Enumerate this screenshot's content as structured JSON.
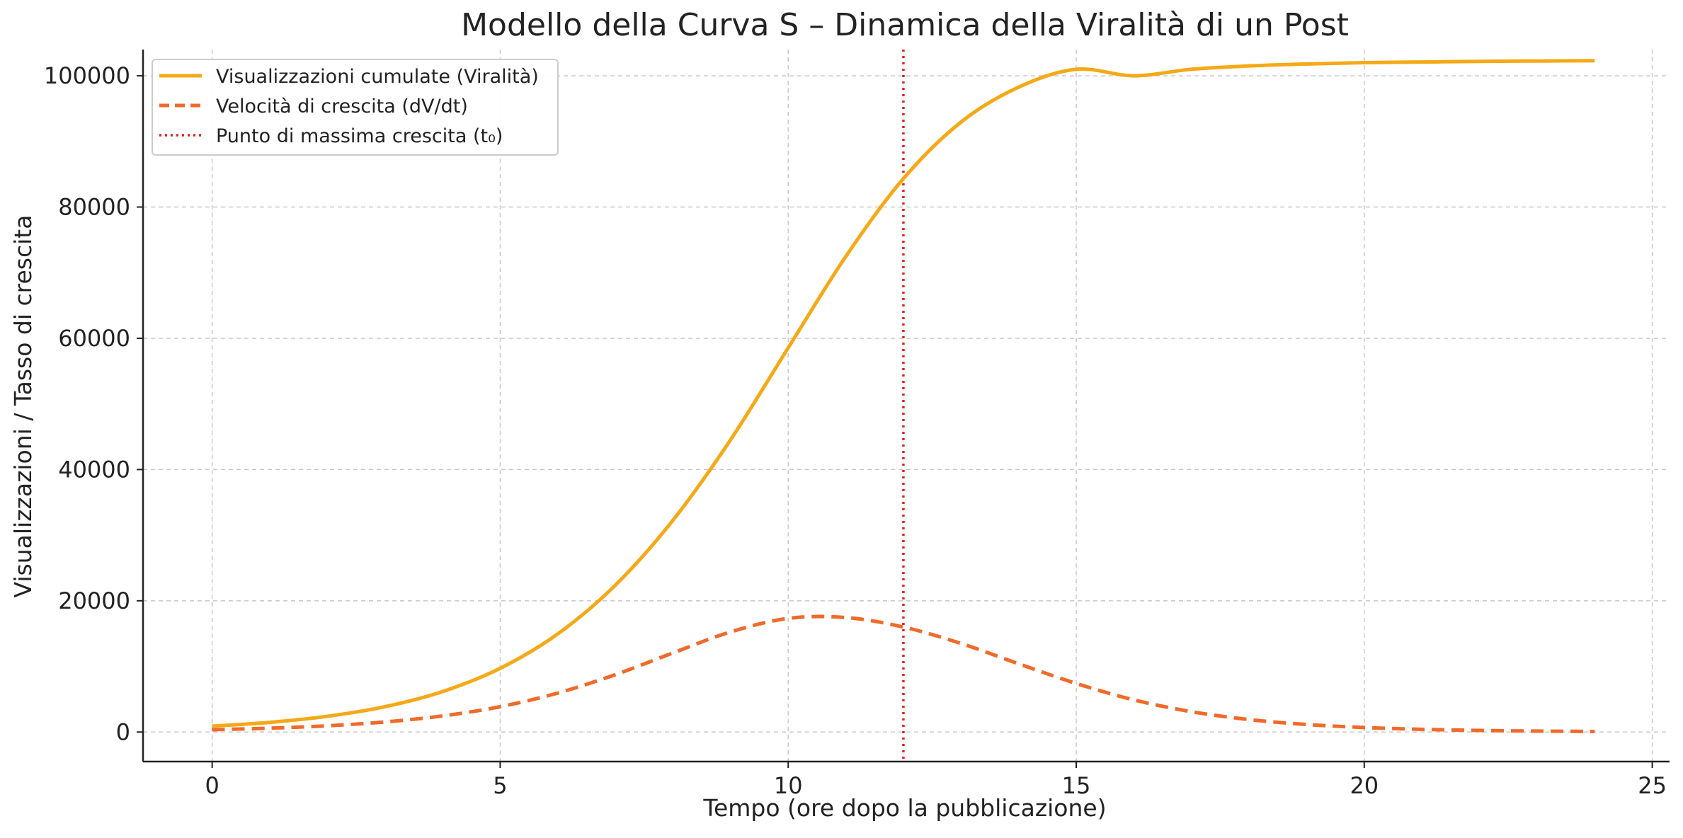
{
  "chart_data": {
    "type": "line",
    "title": "Modello della Curva S – Dinamica della Viralità di un Post",
    "xlabel": "Tempo (ore dopo la pubblicazione)",
    "ylabel": "Visualizzazioni / Tasso di crescita",
    "xlim": [
      -1.2,
      25.3
    ],
    "ylim": [
      -4500,
      104000
    ],
    "x_ticks": [
      0,
      5,
      10,
      15,
      20,
      25
    ],
    "y_ticks": [
      0,
      20000,
      40000,
      60000,
      80000,
      100000
    ],
    "grid": true,
    "legend_position": "upper-left",
    "series": [
      {
        "name": "Visualizzazioni cumulate (Viralità)",
        "style": "solid",
        "color": "#F5A917",
        "x": [
          0,
          1,
          2,
          3,
          4,
          5,
          6,
          7,
          8,
          9,
          10,
          11,
          12,
          13,
          14,
          15,
          16,
          17,
          18,
          19,
          20,
          21,
          22,
          23,
          24
        ],
        "values": [
          907,
          1477,
          2397,
          3865,
          6170,
          9708,
          14957,
          22382,
          32277,
          44537,
          58542,
          72463,
          84332,
          92946,
          98269,
          100990,
          100001,
          101000,
          101500,
          101800,
          102000,
          102100,
          102200,
          102250,
          102300
        ]
      },
      {
        "name": "Velocità di crescita (dV/dt)",
        "style": "dashed",
        "color": "#F06A2A",
        "x": [
          0,
          1,
          2,
          3,
          4,
          5,
          6,
          7,
          8,
          9,
          10,
          11,
          12,
          13,
          14,
          15,
          16,
          17,
          18,
          19,
          20,
          21,
          22,
          23,
          24
        ],
        "values": [
          360,
          587,
          950,
          1535,
          2452,
          3860,
          5936,
          8744,
          12058,
          15255,
          17318,
          17446,
          16000,
          13500,
          10400,
          7400,
          4900,
          3100,
          1900,
          1150,
          690,
          410,
          245,
          145,
          85
        ]
      }
    ],
    "vlines": [
      {
        "name": "Punto di massima crescita (t₀)",
        "x": 12,
        "style": "dotted",
        "color": "#E3211C"
      }
    ]
  }
}
